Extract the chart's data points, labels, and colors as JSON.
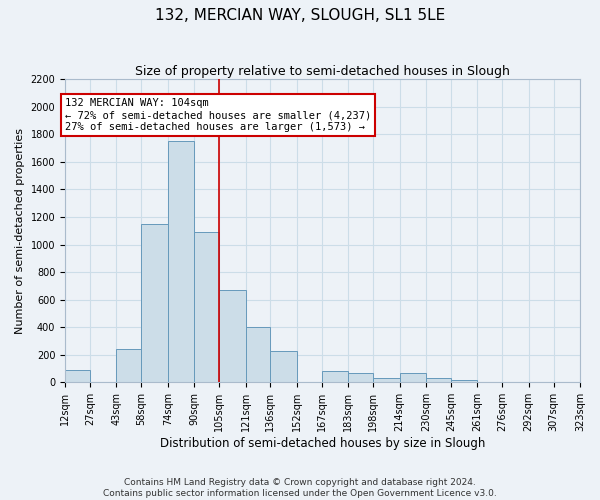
{
  "title": "132, MERCIAN WAY, SLOUGH, SL1 5LE",
  "subtitle": "Size of property relative to semi-detached houses in Slough",
  "xlabel": "Distribution of semi-detached houses by size in Slough",
  "ylabel": "Number of semi-detached properties",
  "bin_edges": [
    12,
    27,
    43,
    58,
    74,
    90,
    105,
    121,
    136,
    152,
    167,
    183,
    198,
    214,
    230,
    245,
    261,
    276,
    292,
    307,
    323
  ],
  "bin_heights": [
    90,
    0,
    240,
    1150,
    1750,
    1090,
    670,
    400,
    230,
    0,
    85,
    70,
    35,
    70,
    35,
    20,
    0,
    0,
    0,
    5
  ],
  "bar_facecolor": "#ccdde8",
  "bar_edgecolor": "#6699bb",
  "bar_linewidth": 0.7,
  "vline_x": 105,
  "vline_color": "#cc0000",
  "vline_linewidth": 1.2,
  "annotation_title": "132 MERCIAN WAY: 104sqm",
  "annotation_line1": "← 72% of semi-detached houses are smaller (4,237)",
  "annotation_line2": "27% of semi-detached houses are larger (1,573) →",
  "annotation_box_edgecolor": "#cc0000",
  "annotation_box_facecolor": "white",
  "ylim": [
    0,
    2200
  ],
  "yticks": [
    0,
    200,
    400,
    600,
    800,
    1000,
    1200,
    1400,
    1600,
    1800,
    2000,
    2200
  ],
  "xtick_labels": [
    "12sqm",
    "27sqm",
    "43sqm",
    "58sqm",
    "74sqm",
    "90sqm",
    "105sqm",
    "121sqm",
    "136sqm",
    "152sqm",
    "167sqm",
    "183sqm",
    "198sqm",
    "214sqm",
    "230sqm",
    "245sqm",
    "261sqm",
    "276sqm",
    "292sqm",
    "307sqm",
    "323sqm"
  ],
  "grid_color": "#ccdde8",
  "background_color": "#edf2f7",
  "footer1": "Contains HM Land Registry data © Crown copyright and database right 2024.",
  "footer2": "Contains public sector information licensed under the Open Government Licence v3.0.",
  "title_fontsize": 11,
  "subtitle_fontsize": 9,
  "tick_fontsize": 7,
  "ylabel_fontsize": 8,
  "xlabel_fontsize": 8.5,
  "footer_fontsize": 6.5,
  "annot_fontsize": 7.5
}
